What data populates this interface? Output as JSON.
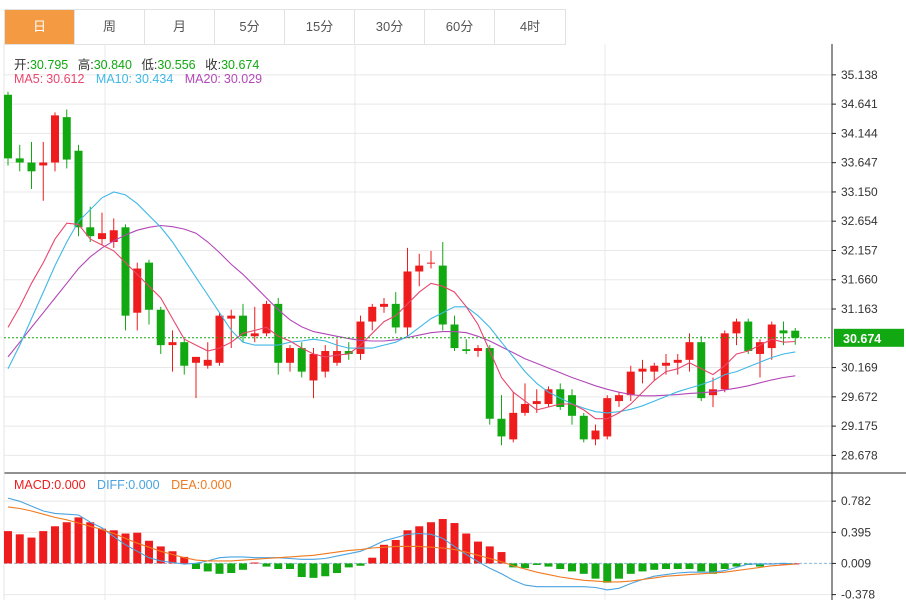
{
  "tabs": [
    {
      "label": "日",
      "active": true
    },
    {
      "label": "周",
      "active": false
    },
    {
      "label": "月",
      "active": false
    },
    {
      "label": "5分",
      "active": false
    },
    {
      "label": "15分",
      "active": false
    },
    {
      "label": "30分",
      "active": false
    },
    {
      "label": "60分",
      "active": false
    },
    {
      "label": "4时",
      "active": false
    }
  ],
  "ohlc_info": {
    "open_label": "开:",
    "open": "30.795",
    "high_label": "高:",
    "high": "30.840",
    "low_label": "低:",
    "low": "30.556",
    "close_label": "收:",
    "close": "30.674"
  },
  "ma_info": {
    "ma5_label": "MA5:",
    "ma5": "30.612",
    "ma10_label": "MA10:",
    "ma10": "30.434",
    "ma20_label": "MA20:",
    "ma20": "30.029"
  },
  "macd_info": {
    "macd_label": "MACD:",
    "macd": "0.000",
    "diff_label": "DIFF:",
    "diff": "0.000",
    "dea_label": "DEA:",
    "dea": "0.000"
  },
  "colors": {
    "up": "#ee1c1c",
    "down": "#11a811",
    "ma5": "#e8466e",
    "ma10": "#3fb8e6",
    "ma20": "#b347b8",
    "diff": "#4aa3e0",
    "dea": "#f07a1f",
    "price_tag": "#11a811",
    "grid": "#e8e8e8"
  },
  "chart_data": {
    "type": "candlestick",
    "price_axis": {
      "ticks": [
        "35.138",
        "34.641",
        "34.144",
        "33.647",
        "33.150",
        "32.654",
        "32.157",
        "31.660",
        "31.163",
        "30.169",
        "29.672",
        "29.175",
        "28.678"
      ],
      "range": [
        28.43,
        35.39
      ],
      "current_price_label": "30.674",
      "current_price": 30.674
    },
    "candles": [
      [
        34.8,
        34.85,
        33.6,
        33.72
      ],
      [
        33.72,
        33.95,
        33.5,
        33.65
      ],
      [
        33.65,
        34.0,
        33.2,
        33.5
      ],
      [
        33.6,
        34.0,
        33.0,
        33.65
      ],
      [
        33.65,
        34.5,
        33.5,
        34.45
      ],
      [
        34.42,
        34.55,
        33.55,
        33.7
      ],
      [
        33.85,
        33.95,
        32.4,
        32.55
      ],
      [
        32.55,
        32.9,
        32.3,
        32.4
      ],
      [
        32.35,
        32.8,
        32.25,
        32.45
      ],
      [
        32.3,
        32.7,
        32.2,
        32.5
      ],
      [
        32.55,
        32.6,
        30.8,
        31.05
      ],
      [
        31.1,
        31.95,
        30.8,
        31.85
      ],
      [
        31.95,
        32.0,
        30.9,
        31.15
      ],
      [
        31.15,
        31.2,
        30.4,
        30.55
      ],
      [
        30.55,
        30.8,
        30.1,
        30.6
      ],
      [
        30.6,
        30.65,
        30.05,
        30.2
      ],
      [
        30.25,
        30.35,
        29.65,
        30.35
      ],
      [
        30.2,
        30.6,
        30.15,
        30.3
      ],
      [
        30.25,
        31.1,
        30.2,
        31.05
      ],
      [
        31.0,
        31.15,
        30.5,
        31.05
      ],
      [
        31.05,
        31.25,
        30.6,
        30.7
      ],
      [
        30.7,
        31.2,
        30.6,
        30.75
      ],
      [
        30.75,
        31.3,
        30.7,
        31.25
      ],
      [
        31.25,
        31.35,
        30.05,
        30.25
      ],
      [
        30.25,
        30.55,
        30.1,
        30.5
      ],
      [
        30.5,
        30.6,
        30.0,
        30.1
      ],
      [
        29.95,
        30.5,
        29.65,
        30.4
      ],
      [
        30.1,
        30.55,
        30.0,
        30.45
      ],
      [
        30.25,
        30.65,
        30.2,
        30.45
      ],
      [
        30.45,
        30.6,
        30.3,
        30.4
      ],
      [
        30.4,
        31.05,
        30.3,
        30.95
      ],
      [
        30.95,
        31.25,
        30.8,
        31.2
      ],
      [
        31.2,
        31.35,
        31.1,
        31.25
      ],
      [
        31.25,
        31.45,
        30.75,
        30.85
      ],
      [
        30.85,
        32.2,
        30.7,
        31.8
      ],
      [
        31.8,
        32.1,
        31.55,
        31.9
      ],
      [
        31.95,
        32.15,
        31.85,
        31.95
      ],
      [
        31.9,
        32.3,
        30.8,
        30.9
      ],
      [
        30.9,
        31.05,
        30.45,
        30.5
      ],
      [
        30.48,
        30.65,
        30.4,
        30.45
      ],
      [
        30.45,
        30.55,
        30.35,
        30.5
      ],
      [
        30.5,
        30.55,
        29.2,
        29.3
      ],
      [
        29.3,
        29.7,
        28.85,
        29.0
      ],
      [
        28.95,
        29.75,
        28.9,
        29.4
      ],
      [
        29.4,
        29.9,
        29.35,
        29.55
      ],
      [
        29.55,
        29.8,
        29.4,
        29.6
      ],
      [
        29.55,
        29.85,
        29.5,
        29.8
      ],
      [
        29.8,
        29.9,
        29.45,
        29.5
      ],
      [
        29.7,
        29.8,
        29.2,
        29.35
      ],
      [
        29.35,
        29.4,
        28.9,
        28.95
      ],
      [
        28.95,
        29.2,
        28.85,
        29.1
      ],
      [
        29.0,
        29.7,
        28.95,
        29.65
      ],
      [
        29.6,
        29.75,
        29.5,
        29.7
      ],
      [
        29.7,
        30.2,
        29.6,
        30.1
      ],
      [
        30.1,
        30.3,
        29.9,
        30.15
      ],
      [
        30.1,
        30.25,
        29.95,
        30.2
      ],
      [
        30.2,
        30.4,
        30.05,
        30.25
      ],
      [
        30.25,
        30.4,
        30.05,
        30.3
      ],
      [
        30.3,
        30.75,
        30.1,
        30.6
      ],
      [
        30.6,
        30.7,
        29.6,
        29.65
      ],
      [
        29.7,
        30.0,
        29.5,
        29.8
      ],
      [
        29.8,
        30.8,
        29.75,
        30.75
      ],
      [
        30.75,
        31.0,
        30.55,
        30.95
      ],
      [
        30.95,
        31.0,
        30.4,
        30.45
      ],
      [
        30.4,
        30.65,
        30.0,
        30.6
      ],
      [
        30.5,
        30.95,
        30.3,
        30.9
      ],
      [
        30.8,
        30.95,
        30.55,
        30.75
      ],
      [
        30.795,
        30.84,
        30.556,
        30.674
      ]
    ],
    "ma5": [
      30.85,
      31.2,
      31.6,
      31.95,
      32.35,
      32.62,
      32.6,
      32.35,
      32.25,
      32.15,
      31.95,
      31.75,
      31.55,
      31.35,
      31.0,
      30.65,
      30.55,
      30.45,
      30.5,
      30.6,
      30.75,
      30.8,
      30.85,
      30.7,
      30.62,
      30.5,
      30.4,
      30.35,
      30.38,
      30.4,
      30.55,
      30.75,
      30.95,
      31.05,
      31.25,
      31.45,
      31.6,
      31.55,
      31.45,
      31.2,
      30.9,
      30.45,
      30.0,
      29.75,
      29.6,
      29.45,
      29.5,
      29.55,
      29.55,
      29.45,
      29.3,
      29.3,
      29.4,
      29.55,
      29.75,
      29.95,
      30.1,
      30.15,
      30.25,
      30.15,
      30.05,
      30.2,
      30.4,
      30.45,
      30.55,
      30.65,
      30.6,
      30.612
    ],
    "ma10": [
      30.15,
      30.55,
      31.0,
      31.45,
      31.9,
      32.3,
      32.65,
      32.85,
      33.05,
      33.15,
      33.1,
      32.95,
      32.75,
      32.55,
      32.3,
      32.0,
      31.7,
      31.4,
      31.1,
      30.8,
      30.6,
      30.55,
      30.55,
      30.55,
      30.6,
      30.62,
      30.65,
      30.62,
      30.55,
      30.5,
      30.5,
      30.5,
      30.55,
      30.6,
      30.7,
      30.85,
      31.0,
      31.1,
      31.2,
      31.2,
      31.05,
      30.85,
      30.6,
      30.35,
      30.1,
      29.9,
      29.75,
      29.65,
      29.55,
      29.48,
      29.42,
      29.4,
      29.42,
      29.46,
      29.52,
      29.6,
      29.68,
      29.76,
      29.82,
      29.88,
      29.95,
      30.05,
      30.1,
      30.18,
      30.26,
      30.34,
      30.4,
      30.434
    ],
    "ma20": [
      30.35,
      30.6,
      30.85,
      31.1,
      31.35,
      31.6,
      31.85,
      32.05,
      32.2,
      32.32,
      32.42,
      32.5,
      32.55,
      32.58,
      32.56,
      32.52,
      32.45,
      32.3,
      32.12,
      31.92,
      31.75,
      31.55,
      31.35,
      31.15,
      30.98,
      30.86,
      30.78,
      30.74,
      30.7,
      30.66,
      30.63,
      30.62,
      30.62,
      30.64,
      30.68,
      30.72,
      30.76,
      30.78,
      30.78,
      30.76,
      30.7,
      30.62,
      30.52,
      30.42,
      30.32,
      30.24,
      30.16,
      30.08,
      30.0,
      29.93,
      29.86,
      29.8,
      29.75,
      29.71,
      29.69,
      29.69,
      29.7,
      29.71,
      29.73,
      29.74,
      29.76,
      29.79,
      29.82,
      29.86,
      29.91,
      29.96,
      30.0,
      30.029
    ],
    "macd_axis": {
      "ticks": [
        "0.782",
        "0.395",
        "0.009",
        "-0.378"
      ],
      "range": [
        -0.42,
        0.92
      ]
    },
    "macd_hist": [
      0.41,
      0.37,
      0.33,
      0.41,
      0.47,
      0.52,
      0.58,
      0.52,
      0.44,
      0.42,
      0.38,
      0.39,
      0.29,
      0.22,
      0.16,
      0.09,
      -0.06,
      -0.09,
      -0.12,
      -0.11,
      -0.07,
      0.02,
      -0.03,
      -0.06,
      -0.06,
      -0.16,
      -0.17,
      -0.15,
      -0.11,
      -0.04,
      -0.02,
      0.08,
      0.24,
      0.3,
      0.42,
      0.47,
      0.52,
      0.56,
      0.51,
      0.38,
      0.28,
      0.22,
      0.15,
      -0.04,
      -0.05,
      -0.01,
      -0.03,
      -0.06,
      -0.09,
      -0.12,
      -0.18,
      -0.23,
      -0.18,
      -0.12,
      -0.09,
      -0.07,
      -0.06,
      -0.06,
      -0.06,
      -0.09,
      -0.12,
      -0.06,
      -0.03,
      -0.01,
      -0.03,
      0.0,
      0.01,
      0.0
    ],
    "diff": [
      0.82,
      0.78,
      0.72,
      0.66,
      0.63,
      0.62,
      0.61,
      0.52,
      0.45,
      0.34,
      0.24,
      0.16,
      0.08,
      0.04,
      0.02,
      0.0,
      0.01,
      0.04,
      0.08,
      0.09,
      0.09,
      0.08,
      0.08,
      0.08,
      0.07,
      0.06,
      0.06,
      0.07,
      0.1,
      0.13,
      0.16,
      0.22,
      0.29,
      0.33,
      0.37,
      0.38,
      0.37,
      0.32,
      0.22,
      0.12,
      0.03,
      -0.05,
      -0.12,
      -0.2,
      -0.26,
      -0.28,
      -0.28,
      -0.28,
      -0.28,
      -0.28,
      -0.29,
      -0.32,
      -0.3,
      -0.24,
      -0.19,
      -0.15,
      -0.13,
      -0.11,
      -0.1,
      -0.1,
      -0.1,
      -0.08,
      -0.04,
      0.0,
      0.0,
      0.0,
      0.01,
      0.0
    ],
    "dea": [
      0.71,
      0.69,
      0.66,
      0.62,
      0.58,
      0.55,
      0.51,
      0.47,
      0.43,
      0.38,
      0.32,
      0.26,
      0.21,
      0.16,
      0.12,
      0.08,
      0.05,
      0.04,
      0.04,
      0.04,
      0.05,
      0.06,
      0.07,
      0.08,
      0.09,
      0.1,
      0.11,
      0.13,
      0.15,
      0.17,
      0.18,
      0.2,
      0.21,
      0.22,
      0.22,
      0.22,
      0.21,
      0.2,
      0.18,
      0.15,
      0.11,
      0.07,
      0.03,
      -0.02,
      -0.06,
      -0.1,
      -0.13,
      -0.16,
      -0.18,
      -0.2,
      -0.21,
      -0.22,
      -0.22,
      -0.21,
      -0.19,
      -0.17,
      -0.15,
      -0.14,
      -0.13,
      -0.12,
      -0.11,
      -0.1,
      -0.08,
      -0.06,
      -0.04,
      -0.02,
      -0.01,
      0.0
    ]
  }
}
